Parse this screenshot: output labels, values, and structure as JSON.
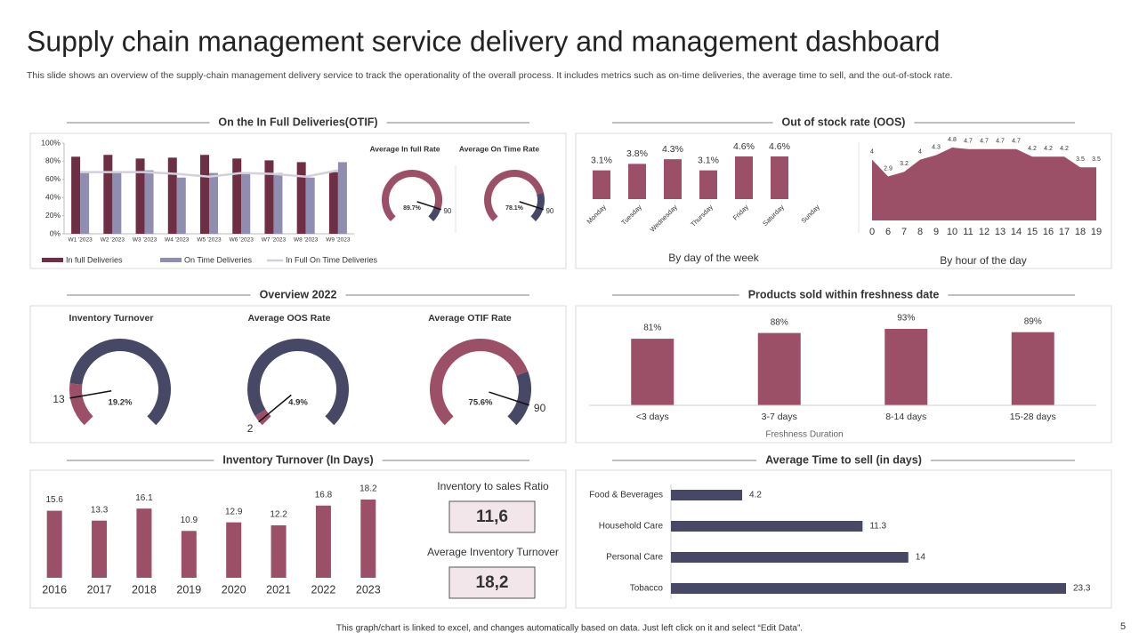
{
  "title": "Supply chain management service delivery and management dashboard",
  "subtitle": "This slide shows an overview of the supply-chain management delivery service to track the operationality of the overall process. It includes metrics such as on-time deliveries, the average time to  sell, and the out-of-stock rate.",
  "footer": "This graph/chart is linked to excel, and changes automatically based on data. Just left click on it and select “Edit Data”.",
  "page_number": "5",
  "panels": [
    "On the In Full Deliveries(OTIF)",
    "Out of stock rate (OOS)",
    "Overview 2022",
    "Products sold within freshness date",
    "Inventory Turnover (In Days)",
    "Average Time to sell (in days)"
  ],
  "kpis": [
    {
      "label": "Inventory  to sales Ratio",
      "value": "11,6"
    },
    {
      "label": "Average  Inventory  Turnover",
      "value": "18,2"
    }
  ],
  "chart_data": [
    {
      "type": "bar",
      "categories": [
        "W1 '2023",
        "W2 '2023",
        "W3 '2023",
        "W4 '2023",
        "W5 '2023",
        "W6 '2023",
        "W7 '2023",
        "W8 '2023",
        "W9 '2023"
      ],
      "series": [
        {
          "name": "In full Deliveries",
          "color": "#6e2f45",
          "values": [
            85,
            87,
            83,
            84,
            87,
            83,
            81,
            79,
            68
          ]
        },
        {
          "name": "On Time Deliveries",
          "color": "#8f8db0",
          "values": [
            68,
            69,
            70,
            62,
            67,
            68,
            67,
            62,
            79
          ]
        },
        {
          "name": "In Full On Time Deliveries",
          "color": "#d3d0da",
          "type": "line",
          "values": [
            68,
            68,
            68,
            66,
            63,
            67,
            66,
            63,
            70
          ]
        }
      ],
      "ylim": [
        0,
        100
      ],
      "yticks": [
        {
          "value": 0,
          "label": "0%"
        },
        {
          "value": 20,
          "label": "20%"
        },
        {
          "value": 40,
          "label": "40%"
        },
        {
          "value": 60,
          "label": "60%"
        },
        {
          "value": 80,
          "label": "80%"
        },
        {
          "value": 100,
          "label": "100%"
        }
      ]
    },
    {
      "type": "gauge",
      "title": "Average  In full Rate",
      "value": 89.7,
      "value_label": "89.7%",
      "target": 90,
      "ylim": [
        0,
        100
      ],
      "colors": [
        "#9b5068",
        "#474766"
      ]
    },
    {
      "type": "gauge",
      "title": "Average On Time Rate",
      "value": 78.1,
      "value_label": "78.1%",
      "target": 90,
      "ylim": [
        0,
        100
      ],
      "colors": [
        "#9b5068",
        "#474766"
      ]
    },
    {
      "type": "bar",
      "xlabel": "By day of the week",
      "rotate": true,
      "categories": [
        "Monday",
        "Tuesday",
        "Wednesday",
        "Thursday",
        "Friday",
        "Saturday",
        "Sunday"
      ],
      "values": [
        3.1,
        3.8,
        4.3,
        3.1,
        4.6,
        4.6,
        null
      ],
      "value_labels": [
        "3.1%",
        "3.8%",
        "4.3%",
        "3.1%",
        "4.6%",
        "4.6%",
        null
      ],
      "color": "#9b5068"
    },
    {
      "type": "area",
      "xlabel": "By hour of the day",
      "categories": [
        "0",
        "6",
        "7",
        "8",
        "9",
        "10",
        "11",
        "12",
        "13",
        "14",
        "15",
        "16",
        "17",
        "18",
        "19"
      ],
      "values": [
        4,
        2.9,
        3.2,
        4,
        4.3,
        4.8,
        4.7,
        4.7,
        4.7,
        4.7,
        4.2,
        4.2,
        4.2,
        3.5,
        3.5
      ],
      "color": "#9b5068"
    },
    {
      "type": "gauge",
      "title": "Inventory Turnover",
      "value": 19.2,
      "value_label": "19.2%",
      "target": 13,
      "ylim": [
        0,
        100
      ],
      "colors": [
        "#9b5068",
        "#474766"
      ]
    },
    {
      "type": "gauge",
      "title": "Average OOS Rate",
      "value": 4.9,
      "value_label": "4.9%",
      "target": 2,
      "ylim": [
        0,
        100
      ],
      "colors": [
        "#9b5068",
        "#474766"
      ]
    },
    {
      "type": "gauge",
      "title": "Average OTIF Rate",
      "value": 75.6,
      "value_label": "75.6%",
      "target": 90,
      "ylim": [
        0,
        100
      ],
      "colors": [
        "#9b5068",
        "#474766"
      ]
    },
    {
      "type": "bar",
      "xlabel": "Freshness Duration",
      "categories": [
        "<3 days",
        "3-7 days",
        "8-14 days",
        "15-28 days"
      ],
      "values": [
        81,
        88,
        93,
        89
      ],
      "value_labels": [
        "81%",
        "88%",
        "93%",
        "89%"
      ],
      "color": "#9b5068"
    },
    {
      "type": "bar",
      "categories": [
        "2016",
        "2017",
        "2018",
        "2019",
        "2020",
        "2021",
        "2022",
        "2023"
      ],
      "values": [
        15.6,
        13.3,
        16.1,
        10.9,
        12.9,
        12.2,
        16.8,
        18.2
      ],
      "color": "#9b5068"
    },
    {
      "type": "hbar",
      "categories": [
        "Food & Beverages",
        "Household Care",
        "Personal Care",
        "Tobacco"
      ],
      "values": [
        4.2,
        11.3,
        14,
        23.3
      ],
      "color": "#474766"
    }
  ]
}
